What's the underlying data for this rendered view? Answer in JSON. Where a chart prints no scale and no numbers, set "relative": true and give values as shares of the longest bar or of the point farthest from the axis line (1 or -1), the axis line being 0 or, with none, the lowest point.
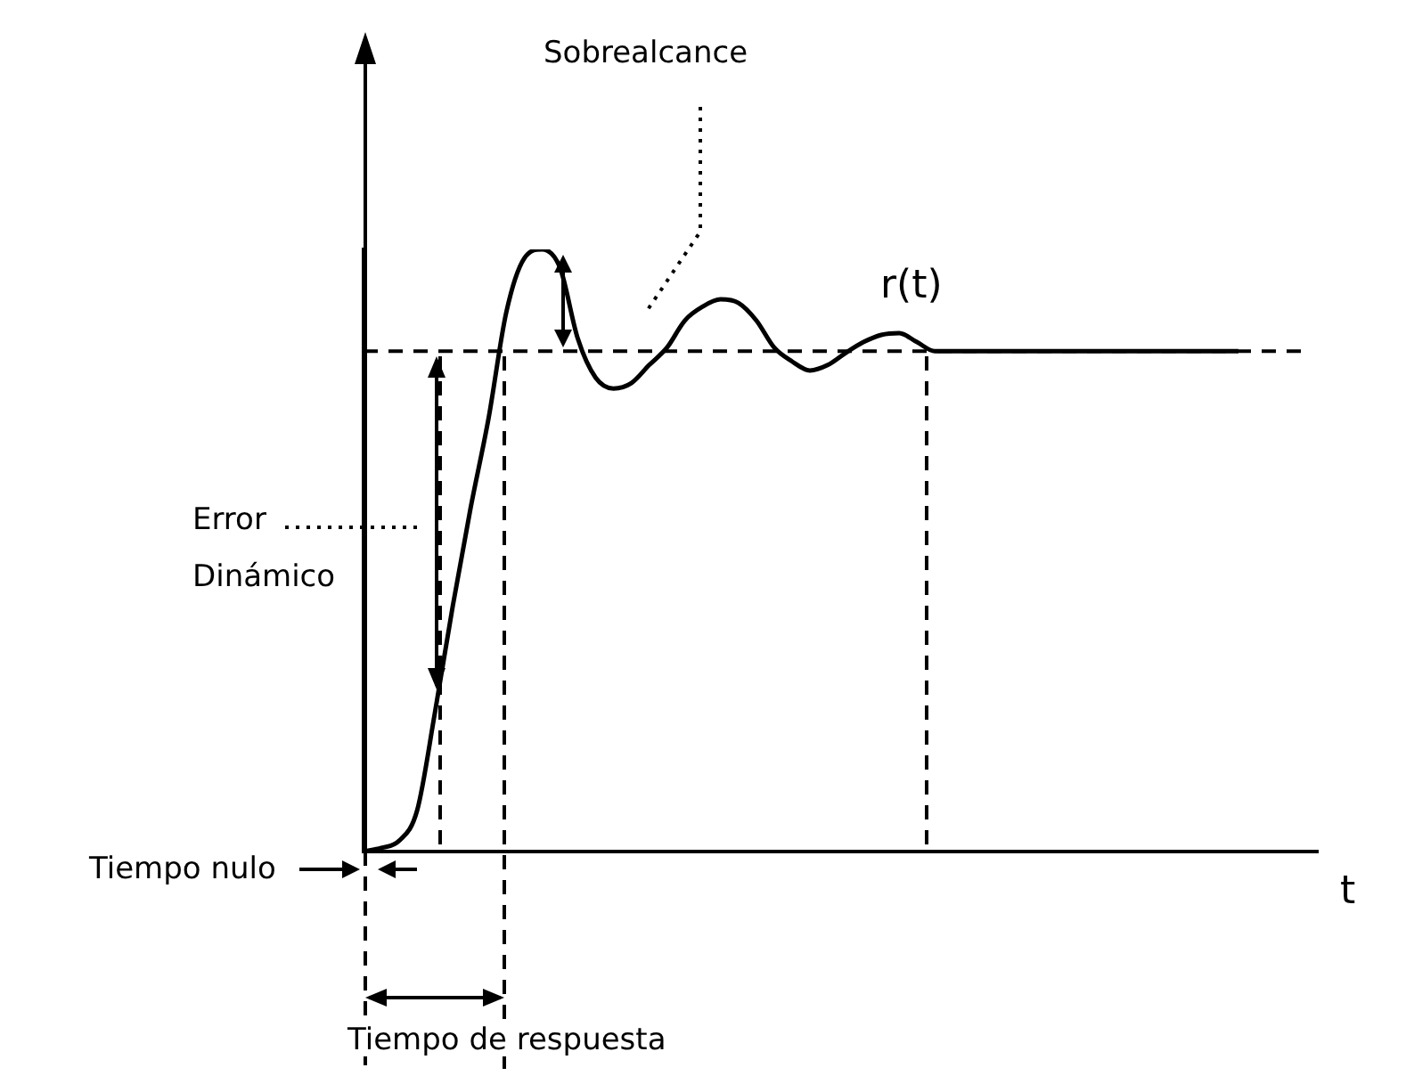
{
  "chart_data": {
    "type": "line",
    "relative": true,
    "xlabel": "t",
    "categories": [
      null,
      null,
      null,
      null,
      null,
      null,
      null,
      null,
      null,
      null,
      null,
      null,
      null,
      null,
      null,
      null,
      null,
      null,
      null,
      null,
      null,
      null,
      null,
      null,
      null,
      null,
      null,
      null,
      null,
      null,
      null,
      null,
      null,
      null,
      null,
      null,
      null,
      null,
      null,
      null,
      null,
      null,
      null,
      null,
      null,
      null,
      null,
      null,
      null,
      null,
      null,
      null,
      null,
      null
    ],
    "series": [
      {
        "name": "r(t)",
        "color": "#000000",
        "values": [
          0,
          0.006,
          0.018,
          0.068,
          0.231,
          0.408,
          0.571,
          0.719,
          0.896,
          0.985,
          1,
          0.97,
          0.852,
          0.787,
          0.769,
          0.778,
          0.808,
          0.837,
          0.882,
          0.905,
          0.917,
          0.911,
          0.882,
          0.837,
          0.814,
          0.799,
          0.808,
          0.828,
          0.846,
          0.858,
          0.861,
          0.846,
          0.831,
          0.831,
          0.831,
          0.831,
          0.831,
          0.831,
          0.831,
          0.831,
          0.831,
          0.831,
          0.831,
          0.831,
          0.831,
          0.831,
          0.831,
          0.831,
          0.831,
          0.831,
          null,
          null,
          null,
          null
        ]
      }
    ],
    "ref_lines": [
      {
        "axis": "y",
        "value": 0.831,
        "color": "#000000",
        "line_style": "dashed"
      }
    ],
    "annotations": [
      "Sobrealcance",
      "Error Dinámico",
      "Tiempo nulo",
      "Tiempo de respuesta"
    ],
    "legend": false,
    "marker": "none",
    "grid": false
  }
}
